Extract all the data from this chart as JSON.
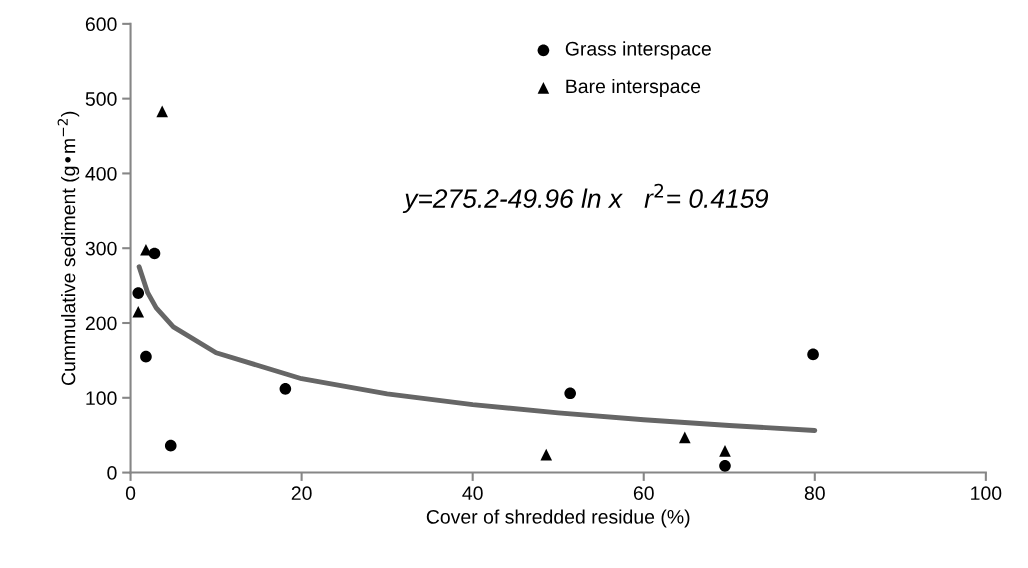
{
  "chart_data": {
    "type": "scatter",
    "xlabel": "Cover of shredded residue (%)",
    "ylabel": "Cummulative sediment (g•m$^{−2}$)",
    "xlim": [
      0,
      100
    ],
    "xticks": [
      0,
      20,
      40,
      60,
      80,
      100
    ],
    "ylim": [
      0,
      600
    ],
    "yticks": [
      0,
      100,
      200,
      300,
      400,
      500,
      600
    ],
    "grid": false,
    "legend": "top right",
    "annotations": [
      "y=275.2-49.96 ln x   r$^{2}$= 0.4159"
    ],
    "series": [
      {
        "name": "Grass interspace",
        "color": "#000000",
        "marker": "circle",
        "x": [
          0.9,
          2.8,
          1.8,
          4.7,
          18.1,
          51.4,
          69.5,
          79.8
        ],
        "values": [
          240,
          293,
          155,
          36,
          112,
          106,
          9,
          158
        ]
      },
      {
        "name": "Bare interspace",
        "color": "#000000",
        "marker": "triangle",
        "x": [
          1.8,
          3.7,
          0.9,
          48.6,
          64.8,
          69.5
        ],
        "values": [
          298,
          483,
          215,
          24,
          47,
          29
        ]
      },
      {
        "type": "line",
        "color": "#666666",
        "marker": "none",
        "x": [
          1,
          2,
          3,
          5,
          10,
          20,
          30,
          40,
          50,
          60,
          70,
          80
        ],
        "values": [
          275.2,
          240.6,
          220.3,
          194.8,
          160.2,
          125.5,
          105.3,
          90.9,
          79.8,
          70.6,
          62.9,
          56.3
        ]
      }
    ]
  }
}
